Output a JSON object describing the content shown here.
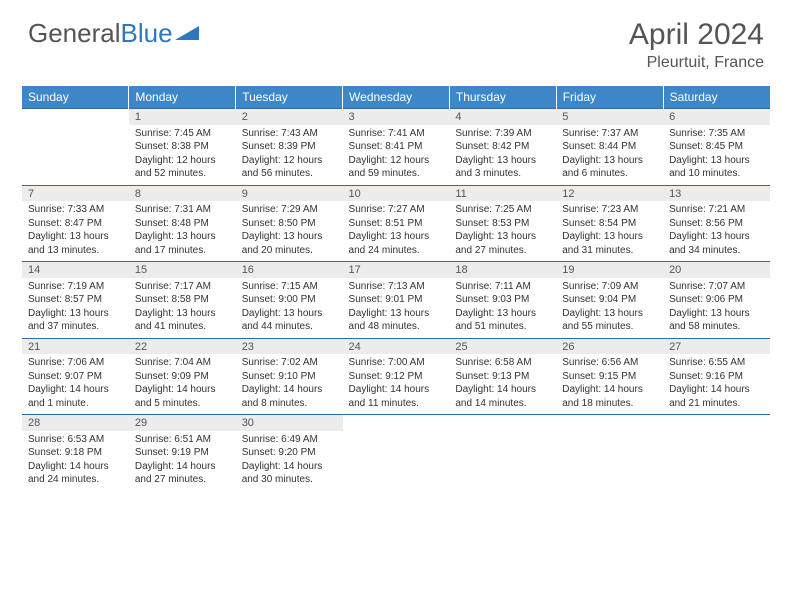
{
  "logo": {
    "part1": "General",
    "part2": "Blue"
  },
  "title": "April 2024",
  "location": "Pleurtuit, France",
  "colors": {
    "header_bg": "#3d87c9",
    "header_text": "#ffffff",
    "daynum_bg": "#ececec",
    "border": "#2f6ca3",
    "text": "#333333",
    "title_text": "#555555"
  },
  "days_of_week": [
    "Sunday",
    "Monday",
    "Tuesday",
    "Wednesday",
    "Thursday",
    "Friday",
    "Saturday"
  ],
  "weeks": [
    [
      null,
      {
        "n": "1",
        "sr": "Sunrise: 7:45 AM",
        "ss": "Sunset: 8:38 PM",
        "d1": "Daylight: 12 hours",
        "d2": "and 52 minutes."
      },
      {
        "n": "2",
        "sr": "Sunrise: 7:43 AM",
        "ss": "Sunset: 8:39 PM",
        "d1": "Daylight: 12 hours",
        "d2": "and 56 minutes."
      },
      {
        "n": "3",
        "sr": "Sunrise: 7:41 AM",
        "ss": "Sunset: 8:41 PM",
        "d1": "Daylight: 12 hours",
        "d2": "and 59 minutes."
      },
      {
        "n": "4",
        "sr": "Sunrise: 7:39 AM",
        "ss": "Sunset: 8:42 PM",
        "d1": "Daylight: 13 hours",
        "d2": "and 3 minutes."
      },
      {
        "n": "5",
        "sr": "Sunrise: 7:37 AM",
        "ss": "Sunset: 8:44 PM",
        "d1": "Daylight: 13 hours",
        "d2": "and 6 minutes."
      },
      {
        "n": "6",
        "sr": "Sunrise: 7:35 AM",
        "ss": "Sunset: 8:45 PM",
        "d1": "Daylight: 13 hours",
        "d2": "and 10 minutes."
      }
    ],
    [
      {
        "n": "7",
        "sr": "Sunrise: 7:33 AM",
        "ss": "Sunset: 8:47 PM",
        "d1": "Daylight: 13 hours",
        "d2": "and 13 minutes."
      },
      {
        "n": "8",
        "sr": "Sunrise: 7:31 AM",
        "ss": "Sunset: 8:48 PM",
        "d1": "Daylight: 13 hours",
        "d2": "and 17 minutes."
      },
      {
        "n": "9",
        "sr": "Sunrise: 7:29 AM",
        "ss": "Sunset: 8:50 PM",
        "d1": "Daylight: 13 hours",
        "d2": "and 20 minutes."
      },
      {
        "n": "10",
        "sr": "Sunrise: 7:27 AM",
        "ss": "Sunset: 8:51 PM",
        "d1": "Daylight: 13 hours",
        "d2": "and 24 minutes."
      },
      {
        "n": "11",
        "sr": "Sunrise: 7:25 AM",
        "ss": "Sunset: 8:53 PM",
        "d1": "Daylight: 13 hours",
        "d2": "and 27 minutes."
      },
      {
        "n": "12",
        "sr": "Sunrise: 7:23 AM",
        "ss": "Sunset: 8:54 PM",
        "d1": "Daylight: 13 hours",
        "d2": "and 31 minutes."
      },
      {
        "n": "13",
        "sr": "Sunrise: 7:21 AM",
        "ss": "Sunset: 8:56 PM",
        "d1": "Daylight: 13 hours",
        "d2": "and 34 minutes."
      }
    ],
    [
      {
        "n": "14",
        "sr": "Sunrise: 7:19 AM",
        "ss": "Sunset: 8:57 PM",
        "d1": "Daylight: 13 hours",
        "d2": "and 37 minutes."
      },
      {
        "n": "15",
        "sr": "Sunrise: 7:17 AM",
        "ss": "Sunset: 8:58 PM",
        "d1": "Daylight: 13 hours",
        "d2": "and 41 minutes."
      },
      {
        "n": "16",
        "sr": "Sunrise: 7:15 AM",
        "ss": "Sunset: 9:00 PM",
        "d1": "Daylight: 13 hours",
        "d2": "and 44 minutes."
      },
      {
        "n": "17",
        "sr": "Sunrise: 7:13 AM",
        "ss": "Sunset: 9:01 PM",
        "d1": "Daylight: 13 hours",
        "d2": "and 48 minutes."
      },
      {
        "n": "18",
        "sr": "Sunrise: 7:11 AM",
        "ss": "Sunset: 9:03 PM",
        "d1": "Daylight: 13 hours",
        "d2": "and 51 minutes."
      },
      {
        "n": "19",
        "sr": "Sunrise: 7:09 AM",
        "ss": "Sunset: 9:04 PM",
        "d1": "Daylight: 13 hours",
        "d2": "and 55 minutes."
      },
      {
        "n": "20",
        "sr": "Sunrise: 7:07 AM",
        "ss": "Sunset: 9:06 PM",
        "d1": "Daylight: 13 hours",
        "d2": "and 58 minutes."
      }
    ],
    [
      {
        "n": "21",
        "sr": "Sunrise: 7:06 AM",
        "ss": "Sunset: 9:07 PM",
        "d1": "Daylight: 14 hours",
        "d2": "and 1 minute."
      },
      {
        "n": "22",
        "sr": "Sunrise: 7:04 AM",
        "ss": "Sunset: 9:09 PM",
        "d1": "Daylight: 14 hours",
        "d2": "and 5 minutes."
      },
      {
        "n": "23",
        "sr": "Sunrise: 7:02 AM",
        "ss": "Sunset: 9:10 PM",
        "d1": "Daylight: 14 hours",
        "d2": "and 8 minutes."
      },
      {
        "n": "24",
        "sr": "Sunrise: 7:00 AM",
        "ss": "Sunset: 9:12 PM",
        "d1": "Daylight: 14 hours",
        "d2": "and 11 minutes."
      },
      {
        "n": "25",
        "sr": "Sunrise: 6:58 AM",
        "ss": "Sunset: 9:13 PM",
        "d1": "Daylight: 14 hours",
        "d2": "and 14 minutes."
      },
      {
        "n": "26",
        "sr": "Sunrise: 6:56 AM",
        "ss": "Sunset: 9:15 PM",
        "d1": "Daylight: 14 hours",
        "d2": "and 18 minutes."
      },
      {
        "n": "27",
        "sr": "Sunrise: 6:55 AM",
        "ss": "Sunset: 9:16 PM",
        "d1": "Daylight: 14 hours",
        "d2": "and 21 minutes."
      }
    ],
    [
      {
        "n": "28",
        "sr": "Sunrise: 6:53 AM",
        "ss": "Sunset: 9:18 PM",
        "d1": "Daylight: 14 hours",
        "d2": "and 24 minutes."
      },
      {
        "n": "29",
        "sr": "Sunrise: 6:51 AM",
        "ss": "Sunset: 9:19 PM",
        "d1": "Daylight: 14 hours",
        "d2": "and 27 minutes."
      },
      {
        "n": "30",
        "sr": "Sunrise: 6:49 AM",
        "ss": "Sunset: 9:20 PM",
        "d1": "Daylight: 14 hours",
        "d2": "and 30 minutes."
      },
      null,
      null,
      null,
      null
    ]
  ]
}
